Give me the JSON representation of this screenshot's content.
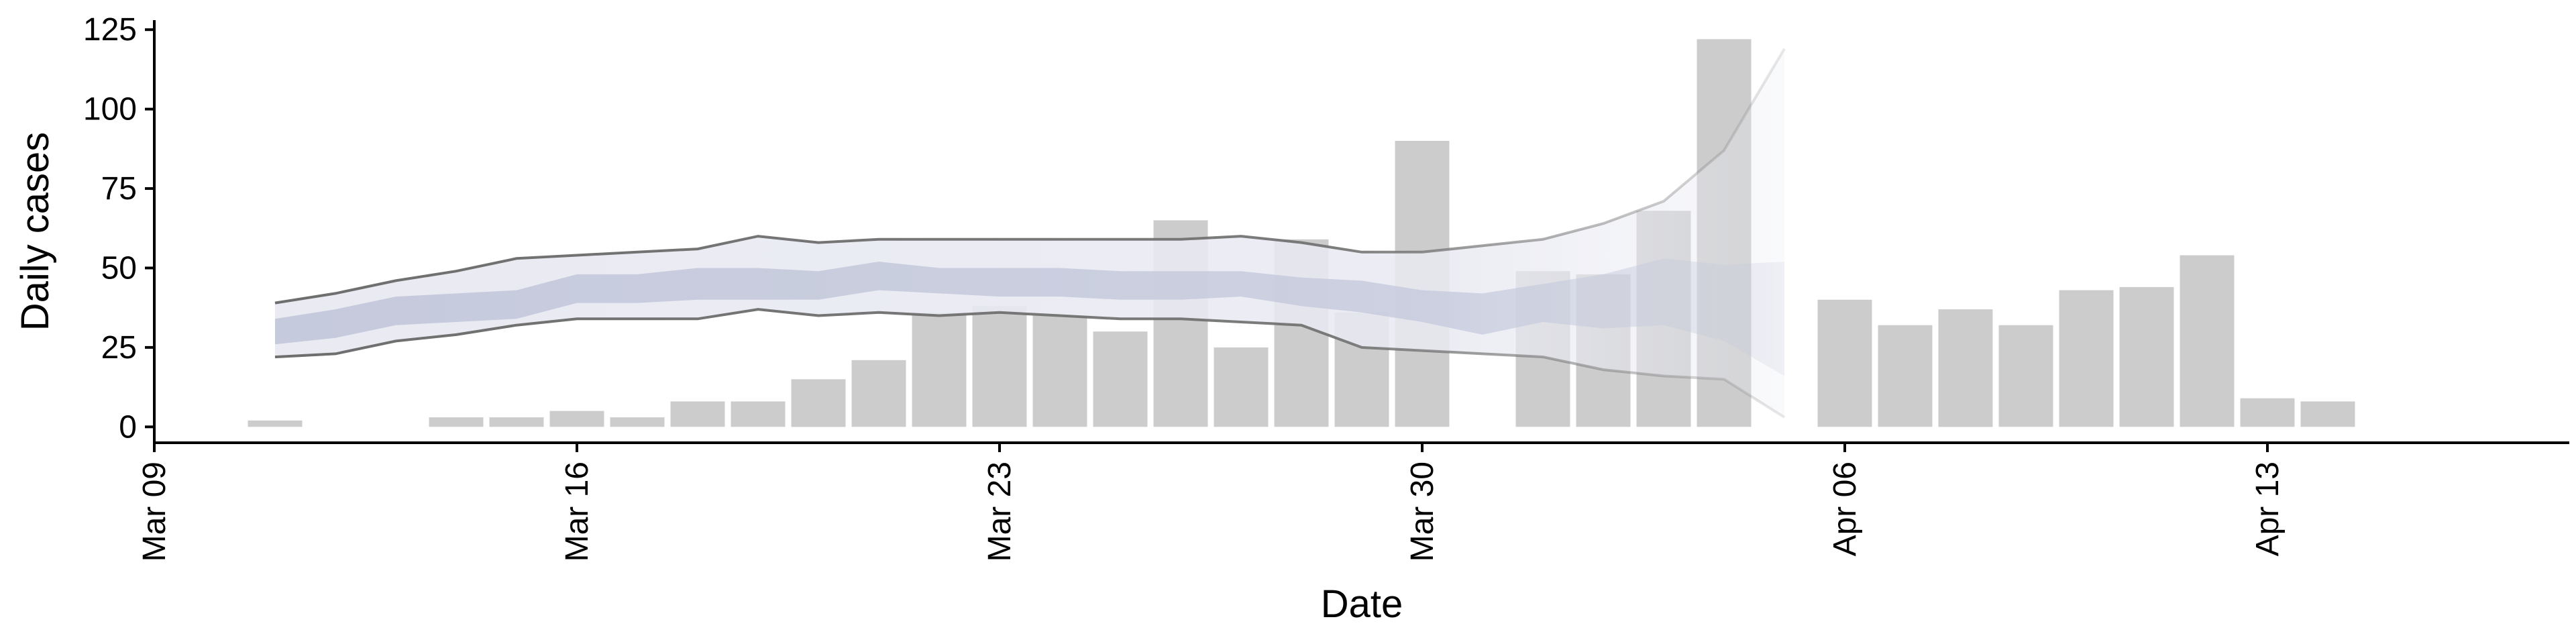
{
  "chart_data": {
    "type": "bar",
    "title": "",
    "xlabel": "Date",
    "ylabel": "Daily cases",
    "xlim": [
      "2020-03-09",
      "2020-04-18"
    ],
    "ylim": [
      -5,
      128
    ],
    "xticks": [
      "Mar 09",
      "Mar 16",
      "Mar 23",
      "Mar 30",
      "Apr 06",
      "Apr 13"
    ],
    "yticks": [
      "0",
      "25",
      "50",
      "75",
      "100",
      "125"
    ],
    "grid": false,
    "colors": {
      "bars": "#cccccc",
      "outer_band": "#e9eaf2",
      "inner_band": "#c6cbdc",
      "bound_lines": "#7a7a7a"
    },
    "bars": {
      "dates": [
        "2020-03-11",
        "2020-03-14",
        "2020-03-15",
        "2020-03-16",
        "2020-03-17",
        "2020-03-18",
        "2020-03-19",
        "2020-03-20",
        "2020-03-21",
        "2020-03-22",
        "2020-03-23",
        "2020-03-24",
        "2020-03-25",
        "2020-03-26",
        "2020-03-27",
        "2020-03-28",
        "2020-03-29",
        "2020-03-30",
        "2020-04-01",
        "2020-04-02",
        "2020-04-03",
        "2020-04-04",
        "2020-04-06",
        "2020-04-07",
        "2020-04-08",
        "2020-04-09",
        "2020-04-10",
        "2020-04-11",
        "2020-04-12",
        "2020-04-13",
        "2020-04-14"
      ],
      "values": [
        2,
        3,
        3,
        5,
        3,
        8,
        8,
        15,
        21,
        36,
        38,
        35,
        30,
        65,
        25,
        59,
        36,
        90,
        49,
        48,
        68,
        122,
        40,
        32,
        37,
        32,
        43,
        44,
        54,
        9,
        8
      ]
    },
    "estimate": {
      "dates": [
        "2020-03-11",
        "2020-03-12",
        "2020-03-13",
        "2020-03-14",
        "2020-03-15",
        "2020-03-16",
        "2020-03-17",
        "2020-03-18",
        "2020-03-19",
        "2020-03-20",
        "2020-03-21",
        "2020-03-22",
        "2020-03-23",
        "2020-03-24",
        "2020-03-25",
        "2020-03-26",
        "2020-03-27",
        "2020-03-28",
        "2020-03-29",
        "2020-03-30",
        "2020-03-31",
        "2020-04-01",
        "2020-04-02",
        "2020-04-03",
        "2020-04-04",
        "2020-04-05"
      ],
      "outer_upper": [
        39,
        42,
        46,
        49,
        53,
        54,
        55,
        56,
        60,
        58,
        59,
        59,
        59,
        59,
        59,
        59,
        60,
        58,
        55,
        55,
        57,
        59,
        64,
        71,
        87,
        119
      ],
      "outer_lower": [
        22,
        23,
        27,
        29,
        32,
        34,
        34,
        34,
        37,
        35,
        36,
        35,
        36,
        35,
        34,
        34,
        33,
        32,
        25,
        24,
        23,
        22,
        18,
        16,
        15,
        3
      ],
      "inner_upper": [
        34,
        37,
        41,
        42,
        43,
        48,
        48,
        50,
        50,
        49,
        52,
        50,
        50,
        50,
        49,
        49,
        49,
        47,
        46,
        43,
        42,
        45,
        48,
        53,
        51,
        52
      ],
      "inner_lower": [
        26,
        28,
        32,
        33,
        34,
        39,
        39,
        40,
        40,
        40,
        43,
        42,
        41,
        41,
        40,
        40,
        41,
        38,
        36,
        33,
        29,
        33,
        31,
        32,
        27,
        16
      ]
    }
  }
}
